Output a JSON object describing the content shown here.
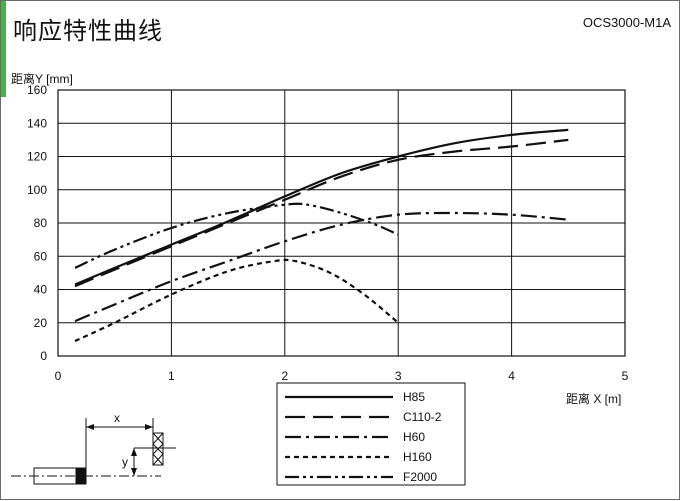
{
  "header": {
    "title": "响应特性曲线",
    "model": "OCS3000-M1A",
    "accent_color": "#4caf50"
  },
  "chart_data": {
    "type": "line",
    "xlabel": "距离 X [m]",
    "ylabel": "距离Y [mm]",
    "xlim": [
      0,
      5
    ],
    "ylim": [
      0,
      160
    ],
    "xticks": [
      "0",
      "1",
      "2",
      "3",
      "4",
      "5"
    ],
    "yticks": [
      "0",
      "20",
      "40",
      "60",
      "80",
      "100",
      "120",
      "140",
      "160"
    ],
    "grid": true,
    "legend_position": "bottom-center",
    "series": [
      {
        "name": "H85",
        "dash": "solid",
        "x": [
          0.15,
          0.5,
          1.0,
          1.5,
          2.0,
          2.5,
          3.0,
          3.5,
          4.0,
          4.5
        ],
        "y": [
          43,
          53,
          67,
          81,
          96,
          110,
          120,
          128,
          133,
          136
        ]
      },
      {
        "name": "C110-2",
        "dash": "longdash",
        "x": [
          0.15,
          0.5,
          1.0,
          1.5,
          2.0,
          2.5,
          3.0,
          3.5,
          4.0,
          4.5
        ],
        "y": [
          42,
          52,
          66,
          80,
          94,
          108,
          118,
          123,
          126,
          130
        ]
      },
      {
        "name": "H60",
        "dash": "dashdot",
        "x": [
          0.15,
          0.5,
          1.0,
          1.5,
          2.0,
          2.5,
          3.0,
          3.5,
          4.0,
          4.5
        ],
        "y": [
          21,
          31,
          45,
          57,
          69,
          79,
          85,
          86,
          85,
          82
        ]
      },
      {
        "name": "H160",
        "dash": "shortdash",
        "x": [
          0.15,
          0.5,
          1.0,
          1.5,
          1.9,
          2.1,
          2.4,
          2.7,
          3.0
        ],
        "y": [
          9,
          20,
          37,
          51,
          57,
          57,
          50,
          37,
          20
        ]
      },
      {
        "name": "F2000",
        "dash": "dashdotdot",
        "x": [
          0.15,
          0.5,
          1.0,
          1.5,
          2.0,
          2.2,
          2.5,
          2.8,
          3.0
        ],
        "y": [
          53,
          64,
          77,
          86,
          91,
          91,
          86,
          79,
          73
        ]
      }
    ]
  },
  "diagram": {
    "x_label": "x",
    "y_label": "y"
  }
}
